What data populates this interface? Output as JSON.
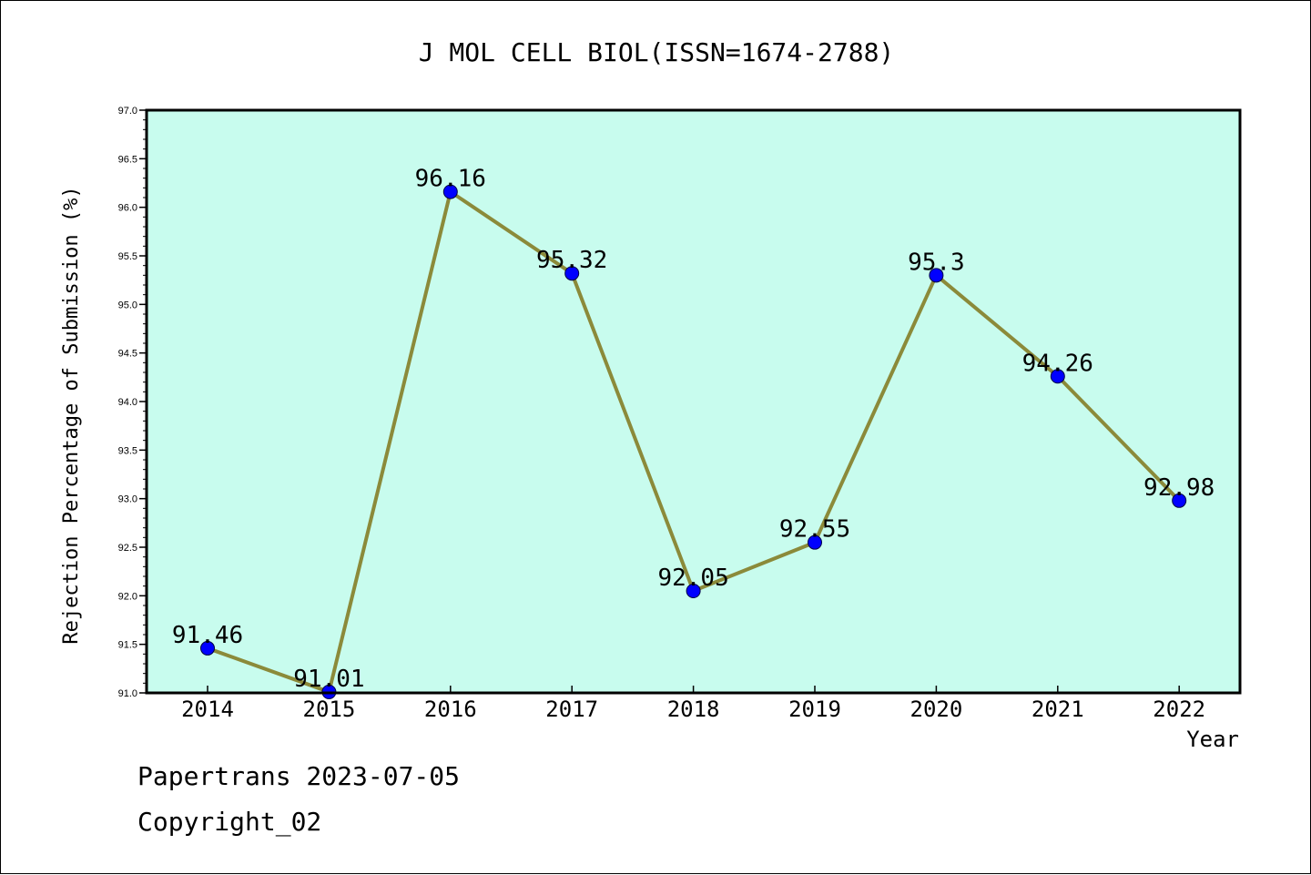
{
  "chart_data": {
    "type": "line",
    "title": "J MOL CELL BIOL(ISSN=1674-2788)",
    "xlabel": "Year",
    "ylabel": "Rejection Percentage of Submission (%)",
    "categories": [
      "2014",
      "2015",
      "2016",
      "2017",
      "2018",
      "2019",
      "2020",
      "2021",
      "2022"
    ],
    "values": [
      91.46,
      91.01,
      96.16,
      95.32,
      92.05,
      92.55,
      95.3,
      94.26,
      92.98
    ],
    "data_labels": [
      "91.46",
      "91.01",
      "96.16",
      "95.32",
      "92.05",
      "92.55",
      "95.3",
      "94.26",
      "92.98"
    ],
    "ylim": [
      91.0,
      97.0
    ],
    "yticks": [
      "91.0",
      "91.5",
      "92.0",
      "92.5",
      "93.0",
      "93.5",
      "94.0",
      "94.5",
      "95.0",
      "95.5",
      "96.0",
      "96.5",
      "97.0"
    ],
    "grid": false,
    "colors": {
      "plot_background": "#c8fcee",
      "line": "#8b8a3a",
      "marker": "#0000ff"
    }
  },
  "footer": {
    "line1": "Papertrans 2023-07-05",
    "line2": "Copyright_02"
  }
}
